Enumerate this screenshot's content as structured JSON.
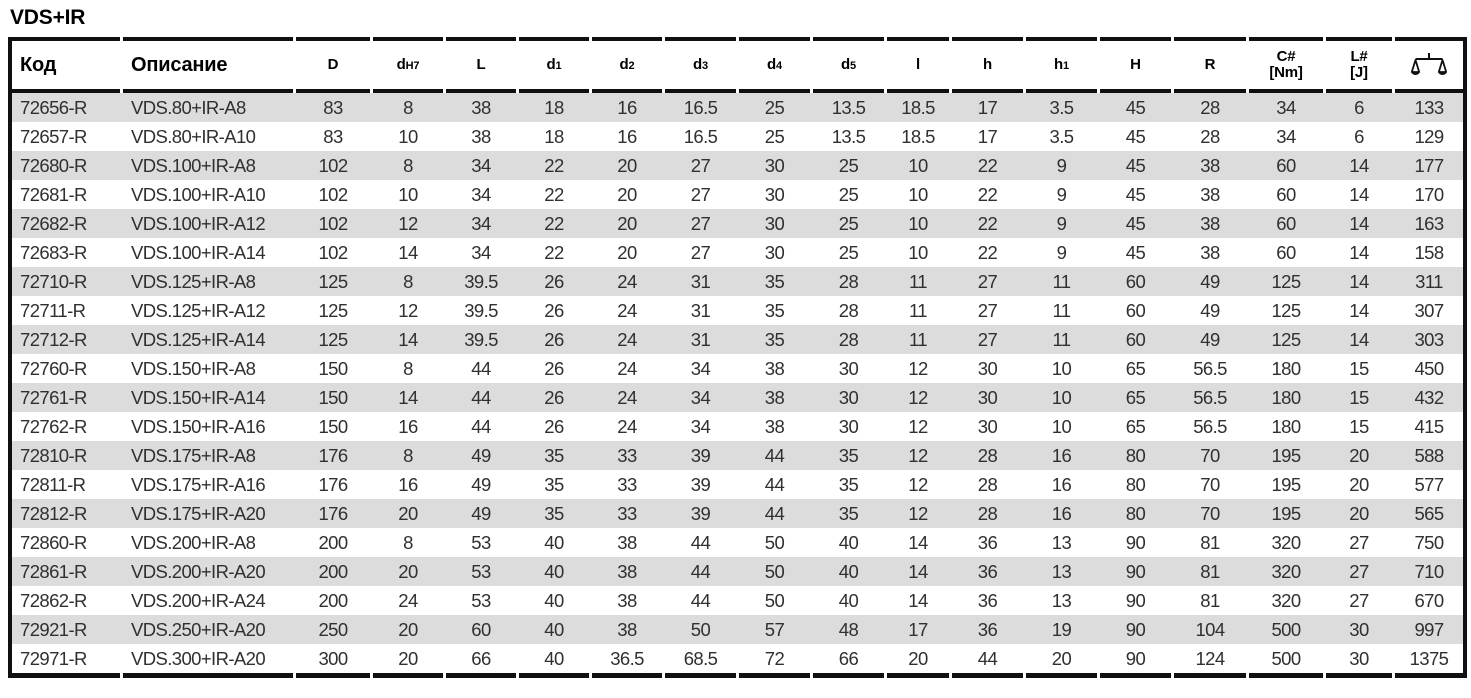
{
  "title": "VDS+IR",
  "colors": {
    "border": "#101010",
    "stripe": "#dcdcdc",
    "header_text": "#000000",
    "cell_text": "#303030"
  },
  "table": {
    "columns": [
      {
        "id": "kod",
        "label": "Код",
        "align": "left",
        "big": true
      },
      {
        "id": "opisanie",
        "label": "Описание",
        "align": "left",
        "big": true
      },
      {
        "id": "D",
        "label": "D"
      },
      {
        "id": "dH7",
        "label": "d",
        "sub": "H7"
      },
      {
        "id": "L",
        "label": "L"
      },
      {
        "id": "d1",
        "label": "d",
        "sub": "1"
      },
      {
        "id": "d2",
        "label": "d",
        "sub": "2"
      },
      {
        "id": "d3",
        "label": "d",
        "sub": "3"
      },
      {
        "id": "d4",
        "label": "d",
        "sub": "4"
      },
      {
        "id": "d5",
        "label": "d",
        "sub": "5"
      },
      {
        "id": "l",
        "label": "l"
      },
      {
        "id": "h",
        "label": "h"
      },
      {
        "id": "h1",
        "label": "h",
        "sub": "1"
      },
      {
        "id": "H",
        "label": "H"
      },
      {
        "id": "R",
        "label": "R"
      },
      {
        "id": "C",
        "label": "C#",
        "line2": "[Nm]"
      },
      {
        "id": "Lj",
        "label": "L#",
        "line2": "[J]"
      },
      {
        "id": "weight",
        "icon": "scale-icon"
      }
    ],
    "rows": [
      [
        "72656-R",
        "VDS.80+IR-A8",
        "83",
        "8",
        "38",
        "18",
        "16",
        "16.5",
        "25",
        "13.5",
        "18.5",
        "17",
        "3.5",
        "45",
        "28",
        "34",
        "6",
        "133"
      ],
      [
        "72657-R",
        "VDS.80+IR-A10",
        "83",
        "10",
        "38",
        "18",
        "16",
        "16.5",
        "25",
        "13.5",
        "18.5",
        "17",
        "3.5",
        "45",
        "28",
        "34",
        "6",
        "129"
      ],
      [
        "72680-R",
        "VDS.100+IR-A8",
        "102",
        "8",
        "34",
        "22",
        "20",
        "27",
        "30",
        "25",
        "10",
        "22",
        "9",
        "45",
        "38",
        "60",
        "14",
        "177"
      ],
      [
        "72681-R",
        "VDS.100+IR-A10",
        "102",
        "10",
        "34",
        "22",
        "20",
        "27",
        "30",
        "25",
        "10",
        "22",
        "9",
        "45",
        "38",
        "60",
        "14",
        "170"
      ],
      [
        "72682-R",
        "VDS.100+IR-A12",
        "102",
        "12",
        "34",
        "22",
        "20",
        "27",
        "30",
        "25",
        "10",
        "22",
        "9",
        "45",
        "38",
        "60",
        "14",
        "163"
      ],
      [
        "72683-R",
        "VDS.100+IR-A14",
        "102",
        "14",
        "34",
        "22",
        "20",
        "27",
        "30",
        "25",
        "10",
        "22",
        "9",
        "45",
        "38",
        "60",
        "14",
        "158"
      ],
      [
        "72710-R",
        "VDS.125+IR-A8",
        "125",
        "8",
        "39.5",
        "26",
        "24",
        "31",
        "35",
        "28",
        "11",
        "27",
        "11",
        "60",
        "49",
        "125",
        "14",
        "311"
      ],
      [
        "72711-R",
        "VDS.125+IR-A12",
        "125",
        "12",
        "39.5",
        "26",
        "24",
        "31",
        "35",
        "28",
        "11",
        "27",
        "11",
        "60",
        "49",
        "125",
        "14",
        "307"
      ],
      [
        "72712-R",
        "VDS.125+IR-A14",
        "125",
        "14",
        "39.5",
        "26",
        "24",
        "31",
        "35",
        "28",
        "11",
        "27",
        "11",
        "60",
        "49",
        "125",
        "14",
        "303"
      ],
      [
        "72760-R",
        "VDS.150+IR-A8",
        "150",
        "8",
        "44",
        "26",
        "24",
        "34",
        "38",
        "30",
        "12",
        "30",
        "10",
        "65",
        "56.5",
        "180",
        "15",
        "450"
      ],
      [
        "72761-R",
        "VDS.150+IR-A14",
        "150",
        "14",
        "44",
        "26",
        "24",
        "34",
        "38",
        "30",
        "12",
        "30",
        "10",
        "65",
        "56.5",
        "180",
        "15",
        "432"
      ],
      [
        "72762-R",
        "VDS.150+IR-A16",
        "150",
        "16",
        "44",
        "26",
        "24",
        "34",
        "38",
        "30",
        "12",
        "30",
        "10",
        "65",
        "56.5",
        "180",
        "15",
        "415"
      ],
      [
        "72810-R",
        "VDS.175+IR-A8",
        "176",
        "8",
        "49",
        "35",
        "33",
        "39",
        "44",
        "35",
        "12",
        "28",
        "16",
        "80",
        "70",
        "195",
        "20",
        "588"
      ],
      [
        "72811-R",
        "VDS.175+IR-A16",
        "176",
        "16",
        "49",
        "35",
        "33",
        "39",
        "44",
        "35",
        "12",
        "28",
        "16",
        "80",
        "70",
        "195",
        "20",
        "577"
      ],
      [
        "72812-R",
        "VDS.175+IR-A20",
        "176",
        "20",
        "49",
        "35",
        "33",
        "39",
        "44",
        "35",
        "12",
        "28",
        "16",
        "80",
        "70",
        "195",
        "20",
        "565"
      ],
      [
        "72860-R",
        "VDS.200+IR-A8",
        "200",
        "8",
        "53",
        "40",
        "38",
        "44",
        "50",
        "40",
        "14",
        "36",
        "13",
        "90",
        "81",
        "320",
        "27",
        "750"
      ],
      [
        "72861-R",
        "VDS.200+IR-A20",
        "200",
        "20",
        "53",
        "40",
        "38",
        "44",
        "50",
        "40",
        "14",
        "36",
        "13",
        "90",
        "81",
        "320",
        "27",
        "710"
      ],
      [
        "72862-R",
        "VDS.200+IR-A24",
        "200",
        "24",
        "53",
        "40",
        "38",
        "44",
        "50",
        "40",
        "14",
        "36",
        "13",
        "90",
        "81",
        "320",
        "27",
        "670"
      ],
      [
        "72921-R",
        "VDS.250+IR-A20",
        "250",
        "20",
        "60",
        "40",
        "38",
        "50",
        "57",
        "48",
        "17",
        "36",
        "19",
        "90",
        "104",
        "500",
        "30",
        "997"
      ],
      [
        "72971-R",
        "VDS.300+IR-A20",
        "300",
        "20",
        "66",
        "40",
        "36.5",
        "68.5",
        "72",
        "66",
        "20",
        "44",
        "20",
        "90",
        "124",
        "500",
        "30",
        "1375"
      ]
    ]
  }
}
